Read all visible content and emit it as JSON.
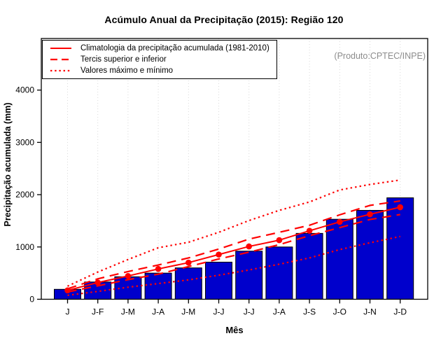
{
  "title": "Acúmulo Anual da Precipitação (2015): Região 120",
  "annotation": "(Produto:CPTEC/INPE)",
  "legend": {
    "position": "top-left",
    "items": [
      {
        "label": "Climatologia da precipitação acumulada (1981-2010)",
        "style": "solid"
      },
      {
        "label": "Tercis superior e inferior",
        "style": "dashed"
      },
      {
        "label": "Valores máximo e mínimo",
        "style": "dotted"
      }
    ]
  },
  "colors": {
    "bar_fill": "#0000cc",
    "bar_border": "#000000",
    "line_red": "#ff0000",
    "grid": "#d9d9d9",
    "axis": "#000000",
    "annotation_gray": "#8c8c8c"
  },
  "chart_data": {
    "type": "bar",
    "title": "Acúmulo Anual da Precipitação (2015): Região 120",
    "xlabel": "Mês",
    "ylabel": "Precipitação acumulada (mm)",
    "categories": [
      "J",
      "J-F",
      "J-M",
      "J-A",
      "J-M",
      "J-J",
      "J-J",
      "J-A",
      "J-S",
      "J-O",
      "J-N",
      "J-D"
    ],
    "yticks": [
      0,
      1000,
      2000,
      3000,
      4000
    ],
    "ylim": [
      0,
      5000
    ],
    "grid": "vertical-dotted",
    "legend_position": "top-left",
    "bars": {
      "values": [
        190,
        330,
        430,
        500,
        600,
        710,
        920,
        1000,
        1260,
        1530,
        1700,
        1940
      ]
    },
    "series": [
      {
        "name": "Climatologia da precipitação acumulada (1981-2010)",
        "style": "solid",
        "points": true,
        "values": [
          170,
          320,
          445,
          580,
          700,
          855,
          1010,
          1130,
          1310,
          1480,
          1625,
          1760
        ]
      },
      {
        "name": "Tercis superior e inferior",
        "style": "dashed",
        "points": false,
        "values": [
          200,
          390,
          530,
          655,
          790,
          960,
          1150,
          1280,
          1415,
          1615,
          1795,
          1880
        ]
      },
      {
        "name": "Tercis superior e inferior",
        "style": "dashed",
        "points": false,
        "values": [
          140,
          255,
          375,
          480,
          625,
          770,
          900,
          1045,
          1215,
          1370,
          1525,
          1620
        ]
      },
      {
        "name": "Valores máximo e mínimo",
        "style": "dotted",
        "points": false,
        "values": [
          250,
          520,
          760,
          985,
          1090,
          1280,
          1505,
          1700,
          1860,
          2090,
          2195,
          2280
        ]
      },
      {
        "name": "Valores máximo e mínimo",
        "style": "dotted",
        "points": false,
        "values": [
          75,
          150,
          230,
          300,
          370,
          460,
          560,
          670,
          790,
          950,
          1080,
          1200
        ]
      }
    ]
  }
}
